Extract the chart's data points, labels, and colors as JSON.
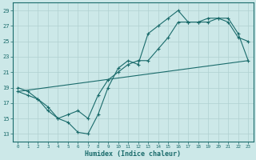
{
  "xlabel": "Humidex (Indice chaleur)",
  "background_color": "#cce8e8",
  "line_color": "#1a6b6b",
  "grid_color": "#b0d0d0",
  "xlim": [
    -0.5,
    23.5
  ],
  "ylim": [
    12,
    30
  ],
  "xticks": [
    0,
    1,
    2,
    3,
    4,
    5,
    6,
    7,
    8,
    9,
    10,
    11,
    12,
    13,
    14,
    15,
    16,
    17,
    18,
    19,
    20,
    21,
    22,
    23
  ],
  "yticks": [
    13,
    15,
    17,
    19,
    21,
    23,
    25,
    27,
    29
  ],
  "line1_x": [
    0,
    1,
    2,
    3,
    4,
    5,
    6,
    7,
    8,
    9,
    10,
    11,
    12,
    13,
    14,
    15,
    16,
    17,
    18,
    19,
    20,
    21,
    22,
    23
  ],
  "line1_y": [
    19.0,
    18.5,
    17.5,
    16.0,
    15.0,
    14.5,
    13.2,
    13.0,
    15.5,
    19.0,
    21.5,
    22.5,
    22.0,
    26.0,
    27.0,
    28.0,
    29.0,
    27.5,
    27.5,
    27.5,
    28.0,
    27.5,
    25.5,
    25.0
  ],
  "line2_x": [
    0,
    1,
    2,
    3,
    4,
    5,
    6,
    7,
    8,
    9,
    10,
    11,
    12,
    13,
    14,
    15,
    16,
    17,
    18,
    19,
    20,
    21,
    22,
    23
  ],
  "line2_y": [
    18.5,
    18.0,
    17.5,
    16.5,
    15.0,
    15.5,
    16.0,
    15.0,
    18.0,
    20.0,
    21.0,
    22.0,
    22.5,
    22.5,
    24.0,
    25.5,
    27.5,
    27.5,
    27.5,
    28.0,
    28.0,
    28.0,
    26.0,
    22.5
  ],
  "line3_x": [
    0,
    23
  ],
  "line3_y": [
    18.5,
    22.5
  ],
  "xtick_fontsize": 4.2,
  "ytick_fontsize": 5.0,
  "xlabel_fontsize": 6.0
}
